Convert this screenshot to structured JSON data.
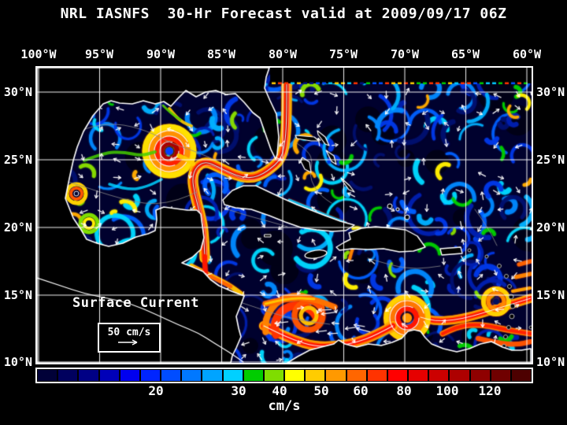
{
  "title": "NRL IASNFS  30-Hr Forecast valid at 2009/09/17 06Z",
  "axes": {
    "lon": [
      "100°W",
      "95°W",
      "90°W",
      "85°W",
      "80°W",
      "75°W",
      "70°W",
      "65°W",
      "60°W"
    ],
    "lat": [
      "30°N",
      "25°N",
      "20°N",
      "15°N",
      "10°N"
    ]
  },
  "legend": {
    "title": "Surface Current",
    "scale": "50 cm/s"
  },
  "colorbar": {
    "unit": "cm/s",
    "ticks": [
      "20",
      "30",
      "40",
      "50",
      "60",
      "80",
      "100",
      "120"
    ],
    "colors": [
      "#010138",
      "#00005e",
      "#000085",
      "#0000b8",
      "#0000ef",
      "#0025ff",
      "#004dff",
      "#0078ff",
      "#00a4ff",
      "#00d0ff",
      "#00cc00",
      "#7fdd00",
      "#ffff00",
      "#ffcc00",
      "#ff9900",
      "#ff6600",
      "#ff3300",
      "#ff0000",
      "#e60000",
      "#cc0000",
      "#ad0000",
      "#8f0000",
      "#700000",
      "#4d0000"
    ]
  }
}
